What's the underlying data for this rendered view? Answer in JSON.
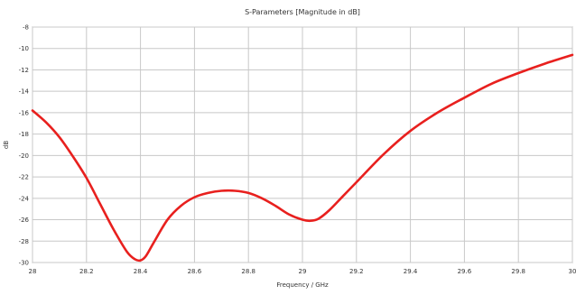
{
  "chart_data": {
    "type": "line",
    "title": "S-Parameters [Magnitude in dB]",
    "xlabel": "Frequency / GHz",
    "ylabel": "dB",
    "xlim": [
      28,
      30
    ],
    "ylim": [
      -30,
      -8
    ],
    "x_ticks": [
      28,
      28.2,
      28.4,
      28.6,
      28.8,
      29,
      29.2,
      29.4,
      29.6,
      29.8,
      30
    ],
    "x_tick_labels": [
      "28",
      "28.2",
      "28.4",
      "28.6",
      "28.8",
      "29",
      "29.2",
      "29.4",
      "29.6",
      "29.8",
      "30"
    ],
    "y_ticks": [
      -8,
      -10,
      -12,
      -14,
      -16,
      -18,
      -20,
      -22,
      -24,
      -26,
      -28,
      -30
    ],
    "y_tick_labels": [
      "-8",
      "-10",
      "-12",
      "-14",
      "-16",
      "-18",
      "-20",
      "-22",
      "-24",
      "-26",
      "-28",
      "-30"
    ],
    "grid": true,
    "series": [
      {
        "color": "#e8201e",
        "x": [
          28.0,
          28.05,
          28.1,
          28.15,
          28.2,
          28.25,
          28.3,
          28.35,
          28.38,
          28.4,
          28.42,
          28.45,
          28.5,
          28.55,
          28.6,
          28.65,
          28.7,
          28.75,
          28.8,
          28.85,
          28.9,
          28.95,
          29.0,
          29.03,
          29.06,
          29.1,
          29.15,
          29.2,
          29.3,
          29.4,
          29.5,
          29.6,
          29.7,
          29.8,
          29.9,
          30.0
        ],
        "y": [
          -15.8,
          -16.9,
          -18.3,
          -20.1,
          -22.1,
          -24.5,
          -26.9,
          -29.0,
          -29.7,
          -29.8,
          -29.4,
          -28.1,
          -26.0,
          -24.7,
          -23.9,
          -23.5,
          -23.3,
          -23.3,
          -23.5,
          -24.0,
          -24.7,
          -25.5,
          -26.0,
          -26.1,
          -25.9,
          -25.1,
          -23.8,
          -22.5,
          -19.9,
          -17.7,
          -16.0,
          -14.6,
          -13.3,
          -12.3,
          -11.4,
          -10.6
        ]
      }
    ]
  }
}
